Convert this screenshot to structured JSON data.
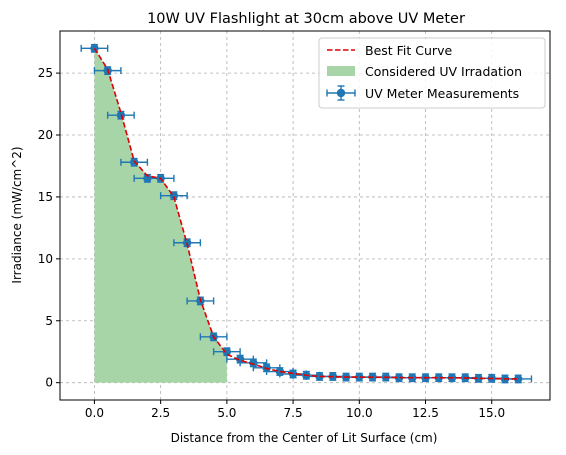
{
  "chart_data": {
    "type": "scatter",
    "title": "10W UV Flashlight at 30cm above UV Meter",
    "xlabel": "Distance from the Center of Lit Surface (cm)",
    "ylabel": "Irradiance (mW/cm^2)",
    "xlim": [
      -1.3,
      17.2
    ],
    "ylim": [
      -1.4,
      28.4
    ],
    "xticks": [
      0,
      2.5,
      5,
      7.5,
      10,
      12.5,
      15
    ],
    "xtick_labels": [
      "0.0",
      "2.5",
      "5.0",
      "7.5",
      "10.0",
      "12.5",
      "15.0"
    ],
    "yticks": [
      0,
      5,
      10,
      15,
      20,
      25
    ],
    "ytick_labels": [
      "0",
      "5",
      "10",
      "15",
      "20",
      "25"
    ],
    "grid": true,
    "legend_position": "top-right",
    "colors": {
      "measurements": "#1f77b4",
      "fit": "#e00000",
      "fill": "#a8d5a8",
      "grid": "#b0b0b0"
    },
    "series": [
      {
        "name": "UV Meter Measurements",
        "kind": "errorbar",
        "x_error": 0.5,
        "y_error": 0.3,
        "x": [
          0,
          0.5,
          1,
          1.5,
          2,
          2.5,
          3,
          3.5,
          4,
          4.5,
          5,
          5.5,
          6,
          6.5,
          7,
          7.5,
          8,
          8.5,
          9,
          9.5,
          10,
          10.5,
          11,
          11.5,
          12,
          12.5,
          13,
          13.5,
          14,
          14.5,
          15,
          15.5,
          16
        ],
        "y": [
          27.0,
          25.2,
          21.6,
          17.8,
          16.5,
          16.5,
          15.1,
          11.3,
          6.6,
          3.7,
          2.5,
          1.9,
          1.6,
          1.2,
          0.9,
          0.7,
          0.6,
          0.5,
          0.5,
          0.45,
          0.45,
          0.45,
          0.45,
          0.4,
          0.4,
          0.4,
          0.4,
          0.4,
          0.4,
          0.35,
          0.35,
          0.3,
          0.3
        ]
      },
      {
        "name": "Best Fit Curve",
        "kind": "line",
        "style": "dashed",
        "x": [
          0,
          0.5,
          1,
          1.5,
          2,
          2.5,
          3,
          3.5,
          4,
          4.5,
          5,
          5.5,
          6,
          6.5,
          7,
          7.5,
          8,
          8.5,
          9,
          9.5,
          10,
          10.5,
          11,
          11.5,
          12,
          12.5,
          13,
          13.5,
          14,
          14.5,
          15,
          15.5,
          16
        ],
        "y": [
          27.0,
          25.3,
          21.8,
          17.9,
          16.7,
          16.5,
          15.0,
          11.2,
          6.7,
          3.7,
          2.3,
          1.8,
          1.5,
          1.15,
          0.9,
          0.75,
          0.6,
          0.5,
          0.48,
          0.45,
          0.45,
          0.44,
          0.43,
          0.41,
          0.4,
          0.4,
          0.4,
          0.39,
          0.38,
          0.35,
          0.34,
          0.31,
          0.3
        ]
      },
      {
        "name": "Considered UV Irradation",
        "kind": "area",
        "x_range": [
          0,
          5
        ]
      }
    ]
  }
}
